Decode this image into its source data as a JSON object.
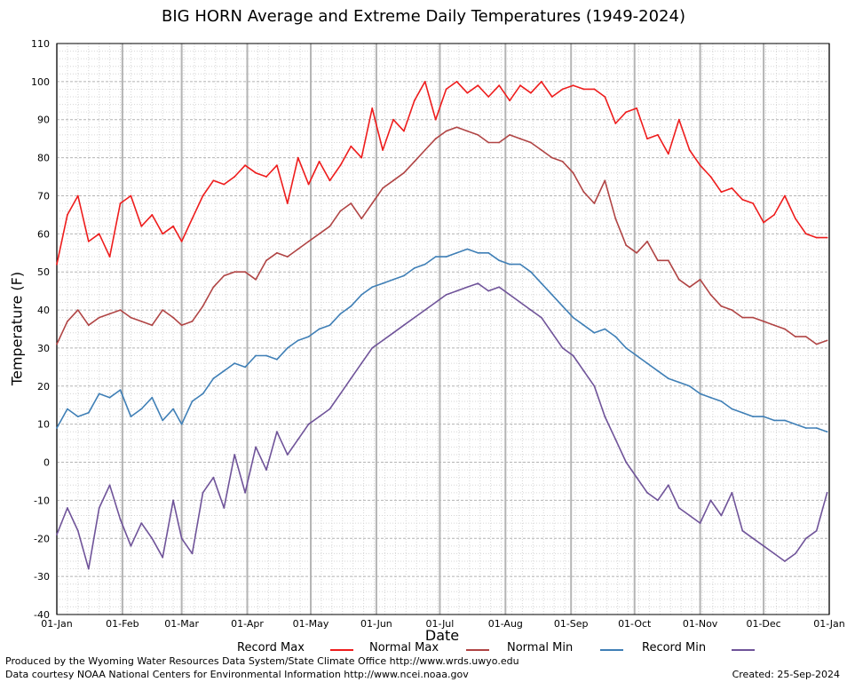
{
  "colors": {
    "record_max": "#ee1c1c",
    "normal_max": "#b04444",
    "normal_min": "#3f7fb6",
    "record_min": "#6f5399",
    "grid_major": "#b4b4b4",
    "grid_minor": "#d6d6d6"
  },
  "footer": {
    "produced_by": "Produced by the Wyoming Water Resources Data System/State Climate Office http://www.wrds.uwyo.edu",
    "data_courtesy": "Data courtesy NOAA National Centers for Environmental Information http://www.ncei.noaa.gov",
    "created": "Created:  25-Sep-2024"
  },
  "chart_data": {
    "type": "line",
    "title": "BIG HORN Average and Extreme Daily Temperatures (1949-2024)",
    "xlabel": "Date",
    "ylabel": "Temperature (F)",
    "ylim": [
      -40,
      110
    ],
    "yticks": [
      -40,
      -30,
      -20,
      -10,
      0,
      10,
      20,
      30,
      40,
      50,
      60,
      70,
      80,
      90,
      100,
      110
    ],
    "xlim": [
      "01-Jan",
      "31-Dec"
    ],
    "xticks": [
      "01-Jan",
      "01-Feb",
      "01-Mar",
      "01-Apr",
      "01-May",
      "01-Jun",
      "01-Jul",
      "01-Aug",
      "01-Sep",
      "01-Oct",
      "01-Nov",
      "01-Dec",
      "01-Jan"
    ],
    "grid": true,
    "legend": "bottom",
    "series_points_note": "values are every 5 days",
    "x": [
      "01-Jan",
      "06-Jan",
      "11-Jan",
      "16-Jan",
      "21-Jan",
      "26-Jan",
      "31-Jan",
      "05-Feb",
      "10-Feb",
      "15-Feb",
      "20-Feb",
      "25-Feb",
      "01-Mar",
      "06-Mar",
      "11-Mar",
      "16-Mar",
      "21-Mar",
      "26-Mar",
      "31-Mar",
      "05-Apr",
      "10-Apr",
      "15-Apr",
      "20-Apr",
      "25-Apr",
      "30-Apr",
      "05-May",
      "10-May",
      "15-May",
      "20-May",
      "25-May",
      "30-May",
      "04-Jun",
      "09-Jun",
      "14-Jun",
      "19-Jun",
      "24-Jun",
      "29-Jun",
      "04-Jul",
      "09-Jul",
      "14-Jul",
      "19-Jul",
      "24-Jul",
      "29-Jul",
      "03-Aug",
      "08-Aug",
      "13-Aug",
      "18-Aug",
      "23-Aug",
      "28-Aug",
      "02-Sep",
      "07-Sep",
      "12-Sep",
      "17-Sep",
      "22-Sep",
      "27-Sep",
      "02-Oct",
      "07-Oct",
      "12-Oct",
      "17-Oct",
      "22-Oct",
      "27-Oct",
      "01-Nov",
      "06-Nov",
      "11-Nov",
      "16-Nov",
      "21-Nov",
      "26-Nov",
      "01-Dec",
      "06-Dec",
      "11-Dec",
      "16-Dec",
      "21-Dec",
      "26-Dec",
      "31-Dec"
    ],
    "series": [
      {
        "name": "Record Max",
        "color": "#ee1c1c",
        "values": [
          52,
          65,
          70,
          58,
          60,
          54,
          68,
          70,
          62,
          65,
          60,
          62,
          58,
          64,
          70,
          74,
          73,
          75,
          78,
          76,
          75,
          78,
          68,
          80,
          73,
          79,
          74,
          78,
          83,
          80,
          93,
          82,
          90,
          87,
          95,
          100,
          90,
          98,
          100,
          97,
          99,
          96,
          99,
          95,
          99,
          97,
          100,
          96,
          98,
          99,
          98,
          98,
          96,
          89,
          92,
          93,
          85,
          86,
          81,
          90,
          82,
          78,
          75,
          71,
          72,
          69,
          68,
          63,
          65,
          70,
          64,
          60,
          59,
          59
        ]
      },
      {
        "name": "Normal Max",
        "color": "#b04444",
        "values": [
          31,
          37,
          40,
          36,
          38,
          39,
          40,
          38,
          37,
          36,
          40,
          38,
          36,
          37,
          41,
          46,
          49,
          50,
          50,
          48,
          53,
          55,
          54,
          56,
          58,
          60,
          62,
          66,
          68,
          64,
          68,
          72,
          74,
          76,
          79,
          82,
          85,
          87,
          88,
          87,
          86,
          84,
          84,
          86,
          85,
          84,
          82,
          80,
          79,
          76,
          71,
          68,
          74,
          64,
          57,
          55,
          58,
          53,
          53,
          48,
          46,
          48,
          44,
          41,
          40,
          38,
          38,
          37,
          36,
          35,
          33,
          33,
          31,
          32
        ]
      },
      {
        "name": "Normal Min",
        "color": "#3f7fb6",
        "values": [
          9,
          14,
          12,
          13,
          18,
          17,
          19,
          12,
          14,
          17,
          11,
          14,
          10,
          16,
          18,
          22,
          24,
          26,
          25,
          28,
          28,
          27,
          30,
          32,
          33,
          35,
          36,
          39,
          41,
          44,
          46,
          47,
          48,
          49,
          51,
          52,
          54,
          54,
          55,
          56,
          55,
          55,
          53,
          52,
          52,
          50,
          47,
          44,
          41,
          38,
          36,
          34,
          35,
          33,
          30,
          28,
          26,
          24,
          22,
          21,
          20,
          18,
          17,
          16,
          14,
          13,
          12,
          12,
          11,
          11,
          10,
          9,
          9,
          8
        ]
      },
      {
        "name": "Record Min",
        "color": "#6f5399",
        "values": [
          -19,
          -12,
          -18,
          -28,
          -12,
          -6,
          -15,
          -22,
          -16,
          -20,
          -25,
          -10,
          -20,
          -24,
          -8,
          -4,
          -12,
          2,
          -8,
          4,
          -2,
          8,
          2,
          6,
          10,
          12,
          14,
          18,
          22,
          26,
          30,
          32,
          34,
          36,
          38,
          40,
          42,
          44,
          45,
          46,
          47,
          45,
          46,
          44,
          42,
          40,
          38,
          34,
          30,
          28,
          24,
          20,
          12,
          6,
          0,
          -4,
          -8,
          -10,
          -6,
          -12,
          -14,
          -16,
          -10,
          -14,
          -8,
          -18,
          -20,
          -22,
          -24,
          -26,
          -24,
          -20,
          -18,
          -8
        ]
      }
    ]
  }
}
